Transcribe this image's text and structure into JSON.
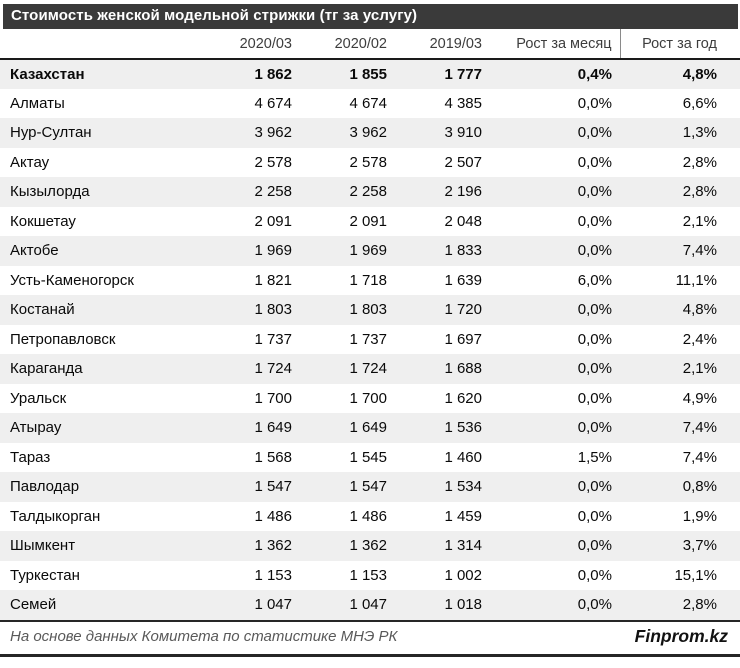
{
  "title": "Стоимость женской модельной стрижки (тг за услугу)",
  "table": {
    "columns": [
      "2020/03",
      "2020/02",
      "2019/03",
      "Рост за месяц",
      "Рост за год"
    ],
    "rows": [
      {
        "name": "Казахстан",
        "v1": "1 862",
        "v2": "1 855",
        "v3": "1 777",
        "m": "0,4%",
        "y": "4,8%",
        "bold": true
      },
      {
        "name": "Алматы",
        "v1": "4 674",
        "v2": "4 674",
        "v3": "4 385",
        "m": "0,0%",
        "y": "6,6%"
      },
      {
        "name": "Нур-Султан",
        "v1": "3 962",
        "v2": "3 962",
        "v3": "3 910",
        "m": "0,0%",
        "y": "1,3%"
      },
      {
        "name": "Актау",
        "v1": "2 578",
        "v2": "2 578",
        "v3": "2 507",
        "m": "0,0%",
        "y": "2,8%"
      },
      {
        "name": "Кызылорда",
        "v1": "2 258",
        "v2": "2 258",
        "v3": "2 196",
        "m": "0,0%",
        "y": "2,8%"
      },
      {
        "name": "Кокшетау",
        "v1": "2 091",
        "v2": "2 091",
        "v3": "2 048",
        "m": "0,0%",
        "y": "2,1%"
      },
      {
        "name": "Актобе",
        "v1": "1 969",
        "v2": "1 969",
        "v3": "1 833",
        "m": "0,0%",
        "y": "7,4%"
      },
      {
        "name": "Усть-Каменогорск",
        "v1": "1 821",
        "v2": "1 718",
        "v3": "1 639",
        "m": "6,0%",
        "y": "11,1%"
      },
      {
        "name": "Костанай",
        "v1": "1 803",
        "v2": "1 803",
        "v3": "1 720",
        "m": "0,0%",
        "y": "4,8%"
      },
      {
        "name": "Петропавловск",
        "v1": "1 737",
        "v2": "1 737",
        "v3": "1 697",
        "m": "0,0%",
        "y": "2,4%"
      },
      {
        "name": "Караганда",
        "v1": "1 724",
        "v2": "1 724",
        "v3": "1 688",
        "m": "0,0%",
        "y": "2,1%"
      },
      {
        "name": "Уральск",
        "v1": "1 700",
        "v2": "1 700",
        "v3": "1 620",
        "m": "0,0%",
        "y": "4,9%"
      },
      {
        "name": "Атырау",
        "v1": "1 649",
        "v2": "1 649",
        "v3": "1 536",
        "m": "0,0%",
        "y": "7,4%"
      },
      {
        "name": "Тараз",
        "v1": "1 568",
        "v2": "1 545",
        "v3": "1 460",
        "m": "1,5%",
        "y": "7,4%"
      },
      {
        "name": "Павлодар",
        "v1": "1 547",
        "v2": "1 547",
        "v3": "1 534",
        "m": "0,0%",
        "y": "0,8%"
      },
      {
        "name": "Талдыкорган",
        "v1": "1 486",
        "v2": "1 486",
        "v3": "1 459",
        "m": "0,0%",
        "y": "1,9%"
      },
      {
        "name": "Шымкент",
        "v1": "1 362",
        "v2": "1 362",
        "v3": "1 314",
        "m": "0,0%",
        "y": "3,7%"
      },
      {
        "name": "Туркестан",
        "v1": "1 153",
        "v2": "1 153",
        "v3": "1 002",
        "m": "0,0%",
        "y": "15,1%"
      },
      {
        "name": "Семей",
        "v1": "1 047",
        "v2": "1 047",
        "v3": "1 018",
        "m": "0,0%",
        "y": "2,8%"
      }
    ]
  },
  "footer": {
    "source": "На основе данных Комитета по статистике МНЭ РК",
    "brand": "Finprom.kz"
  },
  "colors": {
    "title_bar_bg": "#3a3a3a",
    "title_text": "#ffffff",
    "stripe_bg": "#efefef",
    "rule_dark": "#262626",
    "footer_text": "#595959"
  },
  "chart_data": {
    "type": "table",
    "title": "Стоимость женской модельной стрижки (тг за услугу)",
    "columns": [
      "2020/03",
      "2020/02",
      "2019/03",
      "Рост за месяц",
      "Рост за год"
    ],
    "rows": [
      [
        "Казахстан",
        1862,
        1855,
        1777,
        "0,4%",
        "4,8%"
      ],
      [
        "Алматы",
        4674,
        4674,
        4385,
        "0,0%",
        "6,6%"
      ],
      [
        "Нур-Султан",
        3962,
        3962,
        3910,
        "0,0%",
        "1,3%"
      ],
      [
        "Актау",
        2578,
        2578,
        2507,
        "0,0%",
        "2,8%"
      ],
      [
        "Кызылорда",
        2258,
        2258,
        2196,
        "0,0%",
        "2,8%"
      ],
      [
        "Кокшетау",
        2091,
        2091,
        2048,
        "0,0%",
        "2,1%"
      ],
      [
        "Актобе",
        1969,
        1969,
        1833,
        "0,0%",
        "7,4%"
      ],
      [
        "Усть-Каменогорск",
        1821,
        1718,
        1639,
        "6,0%",
        "11,1%"
      ],
      [
        "Костанай",
        1803,
        1803,
        1720,
        "0,0%",
        "4,8%"
      ],
      [
        "Петропавловск",
        1737,
        1737,
        1697,
        "0,0%",
        "2,4%"
      ],
      [
        "Караганда",
        1724,
        1724,
        1688,
        "0,0%",
        "2,1%"
      ],
      [
        "Уральск",
        1700,
        1700,
        1620,
        "0,0%",
        "4,9%"
      ],
      [
        "Атырау",
        1649,
        1649,
        1536,
        "0,0%",
        "7,4%"
      ],
      [
        "Тараз",
        1568,
        1545,
        1460,
        "1,5%",
        "7,4%"
      ],
      [
        "Павлодар",
        1547,
        1547,
        1534,
        "0,0%",
        "0,8%"
      ],
      [
        "Талдыкорган",
        1486,
        1486,
        1459,
        "0,0%",
        "1,9%"
      ],
      [
        "Шымкент",
        1362,
        1362,
        1314,
        "0,0%",
        "3,7%"
      ],
      [
        "Туркестан",
        1153,
        1153,
        1002,
        "0,0%",
        "15,1%"
      ],
      [
        "Семей",
        1047,
        1047,
        1018,
        "0,0%",
        "2,8%"
      ]
    ]
  }
}
